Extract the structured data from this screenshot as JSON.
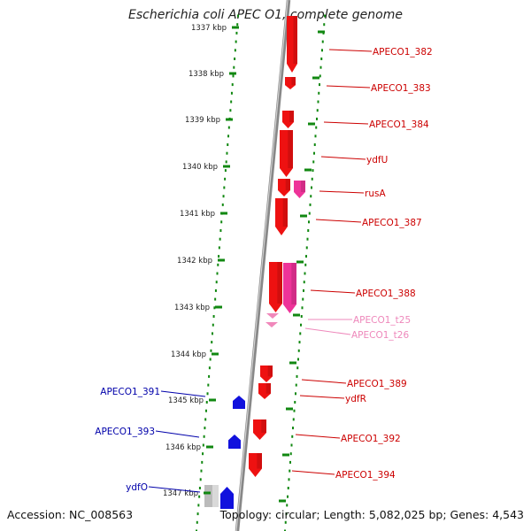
{
  "title": "Escherichia coli APEC O1, complete genome",
  "accession": "Accession: NC_008563",
  "summary": "Topology: circular; Length: 5,082,025 bp; Genes: 4,543",
  "colors": {
    "forward": "#ee1111",
    "forward_alt": "#ee3399",
    "trna": "#f088bb",
    "reverse": "#1111dd",
    "pseudo": "#bbbbbb",
    "backbone": "#888888",
    "ticks": "#118811",
    "label_fwd": "#cc0000",
    "label_trna": "#ee88bb",
    "label_rev": "#0000aa"
  },
  "ticks": [
    {
      "label": "1337 kbp"
    },
    {
      "label": "1338 kbp"
    },
    {
      "label": "1339 kbp"
    },
    {
      "label": "1340 kbp"
    },
    {
      "label": "1341 kbp"
    },
    {
      "label": "1342 kbp"
    },
    {
      "label": "1343 kbp"
    },
    {
      "label": "1344 kbp"
    },
    {
      "label": "1345 kbp"
    },
    {
      "label": "1346 kbp"
    },
    {
      "label": "1347 kbp"
    }
  ],
  "gene_labels": [
    {
      "text": "APECO1_382",
      "kind": "fwd"
    },
    {
      "text": "APECO1_383",
      "kind": "fwd"
    },
    {
      "text": "APECO1_384",
      "kind": "fwd"
    },
    {
      "text": "ydfU",
      "kind": "fwd"
    },
    {
      "text": "rusA",
      "kind": "fwd"
    },
    {
      "text": "APECO1_387",
      "kind": "fwd"
    },
    {
      "text": "APECO1_388",
      "kind": "fwd"
    },
    {
      "text": "APECO1_t25",
      "kind": "trna"
    },
    {
      "text": "APECO1_t26",
      "kind": "trna"
    },
    {
      "text": "APECO1_389",
      "kind": "fwd"
    },
    {
      "text": "ydfR",
      "kind": "fwd"
    },
    {
      "text": "APECO1_392",
      "kind": "fwd"
    },
    {
      "text": "APECO1_394",
      "kind": "fwd"
    },
    {
      "text": "APECO1_391",
      "kind": "rev"
    },
    {
      "text": "APECO1_393",
      "kind": "rev"
    },
    {
      "text": "ydfO",
      "kind": "rev"
    }
  ]
}
